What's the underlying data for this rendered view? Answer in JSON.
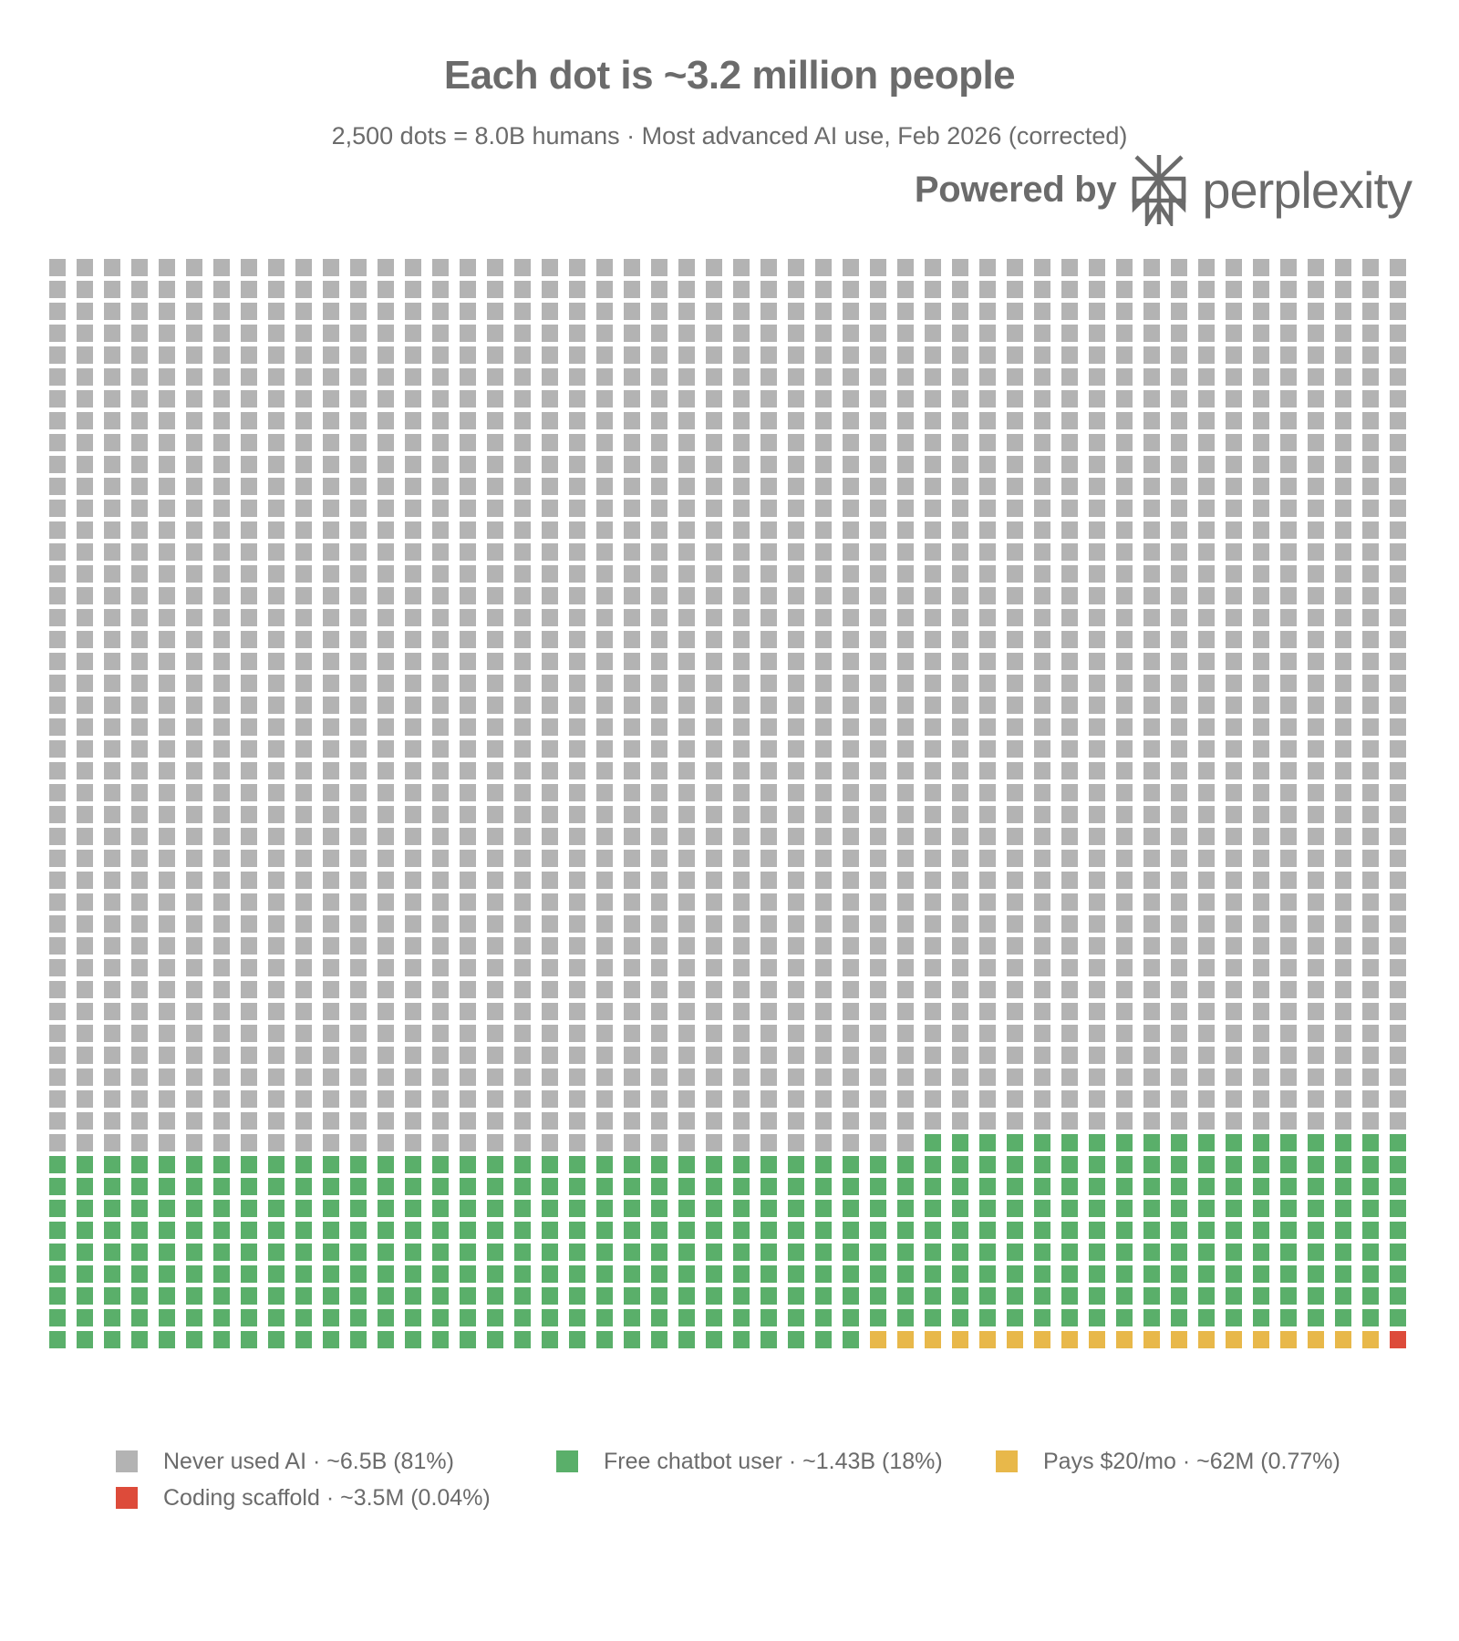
{
  "header": {
    "title": "Each dot is ~3.2 million people",
    "subtitle": "2,500 dots = 8.0B humans · Most advanced AI use, Feb 2026 (corrected)"
  },
  "branding": {
    "powered_by": "Powered by",
    "brand_name": "perplexity",
    "logo_icon": "perplexity-logo-icon",
    "color": "#6b6b6b"
  },
  "chart_data": {
    "type": "waffle",
    "title": "Each dot is ~3.2 million people",
    "subtitle": "2,500 dots = 8.0B humans · Most advanced AI use, Feb 2026 (corrected)",
    "columns": 50,
    "rows": 50,
    "total_dots": 2500,
    "fill_order": "bottom-right to top-left, row by row",
    "categories": [
      {
        "key": "coding",
        "label": "Coding scaffold · ~3.5M (0.04%)",
        "dots": 1,
        "color": "#dd4b3a"
      },
      {
        "key": "pays",
        "label": "Pays $20/mo · ~62M (0.77%)",
        "dots": 19,
        "color": "#e8b84a"
      },
      {
        "key": "free",
        "label": "Free chatbot user · ~1.43B (18%)",
        "dots": 448,
        "color": "#5aaf6a"
      },
      {
        "key": "never",
        "label": "Never used AI · ~6.5B (81%)",
        "dots": 2032,
        "color": "#b3b3b3"
      }
    ],
    "legend_position": "bottom",
    "grid": false
  },
  "legend": {
    "items": [
      {
        "label": "Never used AI · ~6.5B (81%)",
        "color": "#b3b3b3"
      },
      {
        "label": "Free chatbot user · ~1.43B (18%)",
        "color": "#5aaf6a"
      },
      {
        "label": "Pays $20/mo · ~62M (0.77%)",
        "color": "#e8b84a"
      },
      {
        "label": "Coding scaffold · ~3.5M (0.04%)",
        "color": "#dd4b3a"
      }
    ]
  }
}
